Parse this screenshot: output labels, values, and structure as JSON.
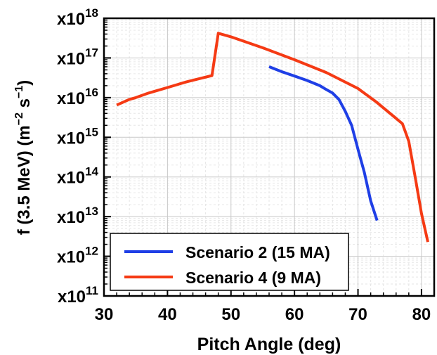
{
  "chart_data": {
    "type": "line",
    "xlabel": "Pitch Angle (deg)",
    "ylabel": "f (3.5 MeV) (m^-2 s^-1)",
    "ylabel_parts": [
      "f (3.5 MeV) (m",
      "−2",
      " s",
      "−1",
      ")"
    ],
    "xlim": [
      30,
      82
    ],
    "ylim": [
      100000000000.0,
      1e+18
    ],
    "yscale": "log",
    "grid": true,
    "legend_position": "bottom-left",
    "x_ticks": [
      "30",
      "40",
      "50",
      "60",
      "70",
      "80"
    ],
    "x_tick_values": [
      30,
      40,
      50,
      60,
      70,
      80
    ],
    "y_tick_base": "x10",
    "y_ticks": [
      "11",
      "12",
      "13",
      "14",
      "15",
      "16",
      "17",
      "18"
    ],
    "y_tick_exponents": [
      11,
      12,
      13,
      14,
      15,
      16,
      17,
      18
    ],
    "series": [
      {
        "name": "Scenario 2 (15 MA)",
        "color": "#1f3fe6",
        "x": [
          56,
          58,
          60,
          62,
          64,
          65,
          66,
          67,
          68,
          69,
          70,
          71,
          72,
          73
        ],
        "y": [
          6e+16,
          4.5e+16,
          3.5e+16,
          2.7e+16,
          2e+16,
          1.6e+16,
          1.3e+16,
          9000000000000000.0,
          4500000000000000.0,
          2000000000000000.0,
          500000000000000.0,
          130000000000000.0,
          25000000000000.0,
          8000000000000.0
        ]
      },
      {
        "name": "Scenario 4 (9 MA)",
        "color": "#f53a14",
        "x": [
          32,
          34,
          35,
          37,
          40,
          43,
          45,
          47,
          48,
          50,
          55,
          60,
          65,
          70,
          73,
          76,
          77,
          78,
          79,
          80,
          81
        ],
        "y": [
          6500000000000000.0,
          9000000000000000.0,
          1e+16,
          1.3e+16,
          1.8e+16,
          2.5e+16,
          3e+16,
          3.6e+16,
          4.2e+17,
          3.4e+17,
          1.8e+17,
          9e+16,
          4.3e+16,
          1.7e+16,
          7500000000000000.0,
          3000000000000000.0,
          2200000000000000.0,
          800000000000000.0,
          100000000000000.0,
          12000000000000.0,
          2300000000000.0
        ]
      }
    ]
  }
}
